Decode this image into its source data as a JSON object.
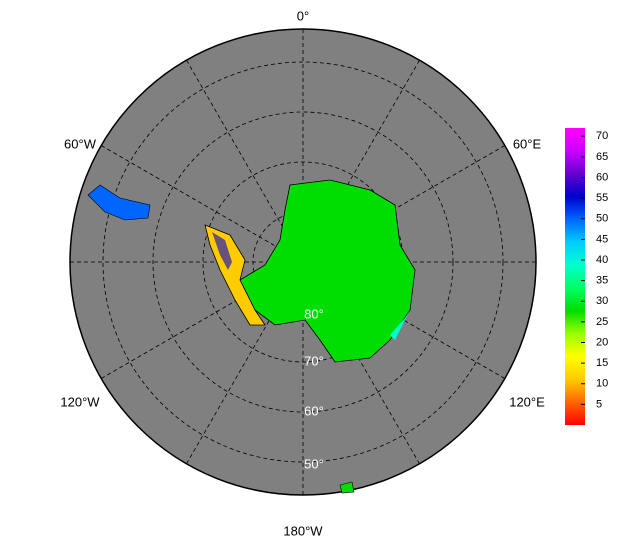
{
  "map": {
    "lon_labels": [
      "0°",
      "60°E",
      "120°E",
      "180°W",
      "120°W",
      "60°W"
    ],
    "lat_labels": [
      "80°",
      "70°",
      "60°",
      "50°"
    ],
    "colorbar": {
      "lim": [
        0,
        72
      ],
      "ticks": [
        5,
        10,
        15,
        20,
        25,
        30,
        35,
        40,
        45,
        50,
        55,
        60,
        65,
        70
      ],
      "colors": [
        "#ff0000",
        "#ff6600",
        "#ffcc00",
        "#ffff00",
        "#99ff00",
        "#00dd00",
        "#00ff66",
        "#00ffcc",
        "#00ccff",
        "#0066ff",
        "#0000cc",
        "#6600cc",
        "#cc00ff",
        "#ff00ff"
      ]
    }
  }
}
